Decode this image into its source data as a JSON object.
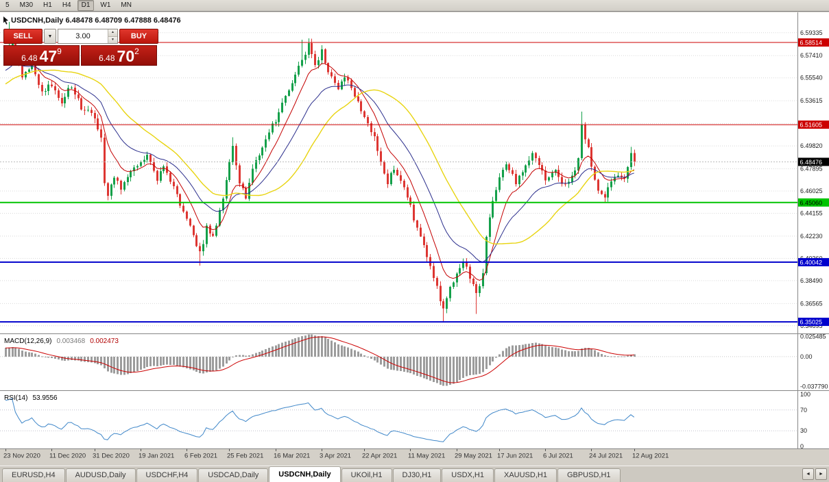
{
  "toolbar": {
    "timeframes": [
      "5",
      "M30",
      "H1",
      "H4",
      "D1",
      "W1",
      "MN"
    ],
    "active": "D1"
  },
  "chart_header": "USDCNH,Daily  6.48478 6.48709 6.47888 6.48476",
  "trade_panel": {
    "sell_label": "SELL",
    "buy_label": "BUY",
    "volume": "3.00",
    "sell_price": {
      "big": "6.48",
      "mid": "47",
      "sup": "9"
    },
    "buy_price": {
      "big": "6.48",
      "mid": "70",
      "sup": "2"
    }
  },
  "icons": {
    "dropdown": "▼",
    "spin_up": "▲",
    "spin_down": "▼",
    "tab_prev": "◄",
    "tab_next": "►"
  },
  "macd": {
    "title": "MACD(12,26,9)",
    "value_main": "0.003468",
    "value_signal": "0.002473",
    "axis_labels": [
      {
        "value": 0.025485,
        "label": "0.025485"
      },
      {
        "value": 0,
        "label": "0.00"
      },
      {
        "value": -0.03779,
        "label": "-0.037790"
      }
    ]
  },
  "rsi": {
    "title": "RSI(14)",
    "value": "53.9556",
    "axis_labels": [
      {
        "value": 100,
        "label": "100"
      },
      {
        "value": 70,
        "label": "70"
      },
      {
        "value": 30,
        "label": "30"
      },
      {
        "value": 0,
        "label": "0"
      }
    ]
  },
  "tabs": {
    "items": [
      "EURUSD,H4",
      "AUDUSD,Daily",
      "USDCHF,H4",
      "USDCAD,Daily",
      "USDCNH,Daily",
      "UKOil,H1",
      "DJ30,H1",
      "USDX,H1",
      "XAUUSD,H1",
      "GBPUSD,H1"
    ],
    "active": "USDCNH,Daily"
  },
  "chart_data": {
    "type": "candlestick",
    "symbol": "USDCNH",
    "timeframe": "Daily",
    "ohlc_header": {
      "open": "6.48478",
      "high": "6.48709",
      "low": "6.47888",
      "close": "6.48476"
    },
    "last_price": 6.48476,
    "y_gridlines": [
      6.59335,
      6.5741,
      6.5554,
      6.53615,
      6.5169,
      6.4982,
      6.47895,
      6.46025,
      6.44155,
      6.4223,
      6.4036,
      6.3849,
      6.36565,
      6.34695
    ],
    "levels": [
      {
        "price": 6.58514,
        "color": "#cc0000",
        "width": 1
      },
      {
        "price": 6.51605,
        "color": "#cc0000",
        "width": 1
      },
      {
        "price": 6.4506,
        "color": "#00c400",
        "width": 2,
        "text_color": "#000000"
      },
      {
        "price": 6.40042,
        "color": "#0000cc",
        "width": 2
      },
      {
        "price": 6.35025,
        "color": "#0000cc",
        "width": 2
      }
    ],
    "dates": [
      "23 Nov 2020",
      "11 Dec 2020",
      "31 Dec 2020",
      "19 Jan 2021",
      "6 Feb 2021",
      "25 Feb 2021",
      "16 Mar 2021",
      "3 Apr 2021",
      "22 Apr 2021",
      "11 May 2021",
      "29 May 2021",
      "17 Jun 2021",
      "6 Jul 2021",
      "24 Jul 2021",
      "12 Aug 2021"
    ],
    "date_tick_indices": [
      0,
      14,
      27,
      41,
      55,
      68,
      82,
      96,
      109,
      123,
      137,
      150,
      164,
      178,
      191
    ],
    "candle_count": 192,
    "candle_colors": {
      "up": "#14a04a",
      "down": "#dd3632"
    },
    "prehistory_keypoints": [
      [
        -50,
        6.5
      ],
      [
        -35,
        6.515
      ],
      [
        -20,
        6.545
      ],
      [
        -10,
        6.562
      ],
      [
        -4,
        6.571
      ]
    ],
    "price_keypoints": [
      [
        0,
        6.578
      ],
      [
        2,
        6.588
      ],
      [
        5,
        6.558
      ],
      [
        8,
        6.565
      ],
      [
        11,
        6.545
      ],
      [
        14,
        6.55
      ],
      [
        17,
        6.536
      ],
      [
        20,
        6.549
      ],
      [
        23,
        6.531
      ],
      [
        27,
        6.521
      ],
      [
        29,
        6.505
      ],
      [
        30,
        6.468
      ],
      [
        31,
        6.458
      ],
      [
        33,
        6.473
      ],
      [
        35,
        6.461
      ],
      [
        38,
        6.479
      ],
      [
        41,
        6.483
      ],
      [
        43,
        6.493
      ],
      [
        46,
        6.47
      ],
      [
        48,
        6.481
      ],
      [
        51,
        6.463
      ],
      [
        53,
        6.448
      ],
      [
        55,
        6.439
      ],
      [
        57,
        6.424
      ],
      [
        59,
        6.407
      ],
      [
        61,
        6.429
      ],
      [
        63,
        6.421
      ],
      [
        65,
        6.444
      ],
      [
        67,
        6.468
      ],
      [
        69,
        6.497
      ],
      [
        71,
        6.466
      ],
      [
        73,
        6.455
      ],
      [
        75,
        6.477
      ],
      [
        78,
        6.497
      ],
      [
        80,
        6.511
      ],
      [
        82,
        6.519
      ],
      [
        85,
        6.539
      ],
      [
        87,
        6.551
      ],
      [
        90,
        6.571
      ],
      [
        92,
        6.583
      ],
      [
        94,
        6.567
      ],
      [
        96,
        6.577
      ],
      [
        98,
        6.561
      ],
      [
        101,
        6.547
      ],
      [
        103,
        6.557
      ],
      [
        106,
        6.539
      ],
      [
        109,
        6.524
      ],
      [
        112,
        6.505
      ],
      [
        114,
        6.486
      ],
      [
        116,
        6.468
      ],
      [
        118,
        6.479
      ],
      [
        120,
        6.469
      ],
      [
        123,
        6.448
      ],
      [
        125,
        6.428
      ],
      [
        128,
        6.407
      ],
      [
        130,
        6.386
      ],
      [
        133,
        6.362
      ],
      [
        135,
        6.378
      ],
      [
        137,
        6.392
      ],
      [
        139,
        6.403
      ],
      [
        141,
        6.387
      ],
      [
        143,
        6.372
      ],
      [
        145,
        6.392
      ],
      [
        146,
        6.42
      ],
      [
        148,
        6.452
      ],
      [
        150,
        6.471
      ],
      [
        152,
        6.483
      ],
      [
        155,
        6.467
      ],
      [
        157,
        6.477
      ],
      [
        160,
        6.494
      ],
      [
        162,
        6.481
      ],
      [
        164,
        6.469
      ],
      [
        167,
        6.478
      ],
      [
        169,
        6.464
      ],
      [
        172,
        6.471
      ],
      [
        174,
        6.488
      ],
      [
        175,
        6.514
      ],
      [
        177,
        6.497
      ],
      [
        178,
        6.481
      ],
      [
        180,
        6.462
      ],
      [
        182,
        6.455
      ],
      [
        184,
        6.467
      ],
      [
        186,
        6.474
      ],
      [
        188,
        6.471
      ],
      [
        190,
        6.491
      ],
      [
        191,
        6.48476
      ]
    ],
    "wick_overrides": {
      "1": {
        "high": 6.6025
      },
      "31": {
        "low": 6.4525
      },
      "59": {
        "low": 6.3975
      },
      "69": {
        "high": 6.5055
      },
      "90": {
        "high": 6.5875
      },
      "92": {
        "high": 6.5885
      },
      "133": {
        "low": 6.3505
      },
      "143": {
        "low": 6.357
      },
      "175": {
        "high": 6.527
      },
      "182": {
        "low": 6.451
      },
      "190": {
        "high": 6.4975
      }
    },
    "moving_averages": [
      {
        "name": "fast",
        "method": "ema",
        "period": 9,
        "color": "#c40000",
        "width": 1
      },
      {
        "name": "medium",
        "method": "ema",
        "period": 21,
        "color": "#2b2e8c",
        "width": 1
      },
      {
        "name": "slow",
        "method": "sma",
        "period": 34,
        "color": "#e8d410",
        "width": 1.4
      }
    ],
    "macd": {
      "fast": 12,
      "slow": 26,
      "signal_period": 9,
      "hist_color": "#9c9c9c",
      "signal_color": "#cc0000",
      "range": [
        -0.0425,
        0.0285
      ]
    },
    "rsi": {
      "period": 14,
      "color": "#3f87c9",
      "levels": [
        70,
        30
      ]
    }
  }
}
